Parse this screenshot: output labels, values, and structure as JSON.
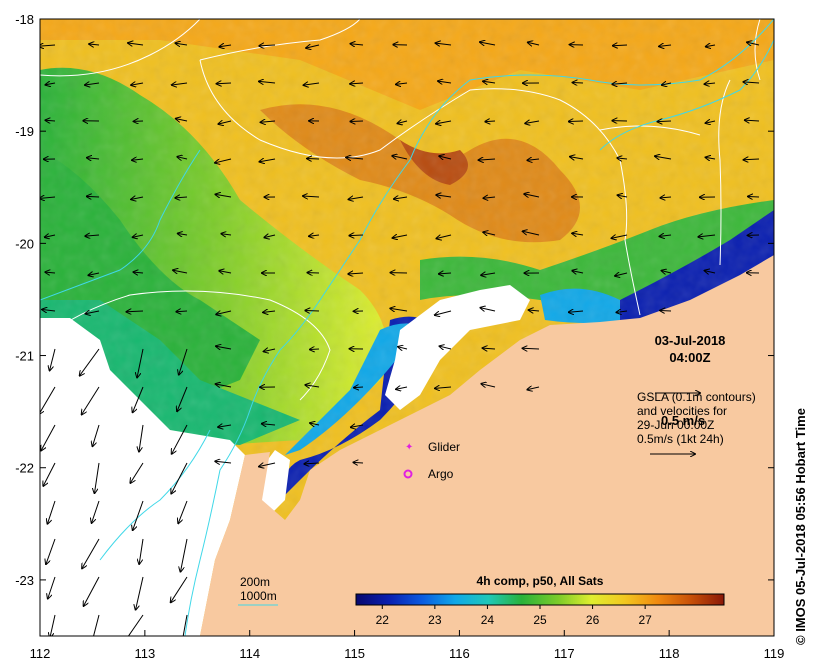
{
  "map": {
    "lon_range": [
      112,
      119
    ],
    "lat_range": [
      -23.5,
      -18
    ],
    "x_ticks": [
      "112",
      "113",
      "114",
      "115",
      "116",
      "117",
      "118",
      "119"
    ],
    "y_ticks": [
      "-18",
      "-19",
      "-20",
      "-21",
      "-22",
      "-23"
    ]
  },
  "annotations": {
    "date": "03-Jul-2018",
    "time": "04:00Z",
    "gsla_line1": "GSLA (0.1m contours)",
    "gsla_line2": "and velocities for",
    "gsla_line3": "29-Jun 00:00Z",
    "gsla_overlap": "0.5 m/s",
    "gsla_line4": "0.5m/s (1kt 24h)",
    "glider_label": "Glider",
    "argo_label": "Argo",
    "bathy_200": "200m",
    "bathy_1000": "1000m"
  },
  "colorbar": {
    "title": "4h comp, p50, All Sats",
    "min": 21.5,
    "max": 28.5,
    "ticks": [
      "22",
      "23",
      "24",
      "25",
      "26",
      "27"
    ],
    "colors": [
      "#08086e",
      "#0a1fb0",
      "#0b5be0",
      "#10a8e8",
      "#20c8b8",
      "#2ab23a",
      "#7ccc2a",
      "#e0ee30",
      "#f2c820",
      "#f08a10",
      "#c85008",
      "#8a1808"
    ]
  },
  "credit": "© IMOS 05-Jul-2018 05:56 Hobart Time",
  "colors": {
    "land": "#f8c9a0",
    "no_data": "#ffffff",
    "contour_gsla": "#ffffff",
    "contour_bathy": "#40d8e8",
    "glider_marker": "#e020e0",
    "argo_marker": "#e020e0"
  }
}
